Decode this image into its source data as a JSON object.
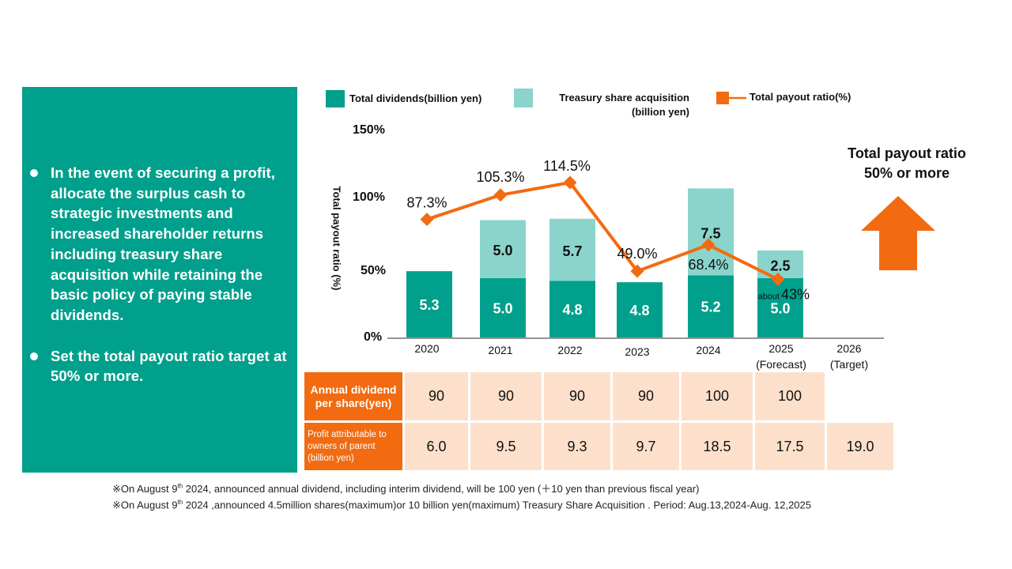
{
  "left_panel": {
    "bullets": [
      "In the event of securing a profit, allocate the surplus cash to strategic investments and increased shareholder returns including treasury share acquisition while retaining the basic policy of paying stable dividends.",
      "Set the total payout ratio target at 50% or more."
    ]
  },
  "legend": {
    "dividends": "Total dividends(billion yen)",
    "treasury_line1": "Treasury share acquisition",
    "treasury_line2": "(billion yen)",
    "payout": "Total payout ratio(%)"
  },
  "target": {
    "line1": "Total payout ratio",
    "line2": "50% or more"
  },
  "chart_data": {
    "type": "bar",
    "stacked": true,
    "categories": [
      "2020",
      "2021",
      "2022",
      "2023",
      "2024",
      "2025\n(Forecast)",
      "2026\n(Target)"
    ],
    "category_labels": [
      {
        "line1": "2020",
        "line2": ""
      },
      {
        "line1": "2021",
        "line2": ""
      },
      {
        "line1": "2022",
        "line2": ""
      },
      {
        "line1": "2023",
        "line2": ""
      },
      {
        "line1": "2024",
        "line2": ""
      },
      {
        "line1": "2025",
        "line2": "(Forecast)"
      },
      {
        "line1": "2026",
        "line2": "(Target)"
      }
    ],
    "series": [
      {
        "name": "Total dividends(billion yen)",
        "values": [
          5.3,
          5.0,
          4.8,
          4.8,
          5.2,
          5.0,
          null
        ],
        "color": "#00a08c"
      },
      {
        "name": "Treasury share acquisition (billion yen)",
        "values": [
          null,
          5.0,
          5.7,
          null,
          7.5,
          2.5,
          null
        ],
        "color": "#8ad4cc"
      }
    ],
    "bar_height_percent": [
      [
        48,
        0
      ],
      [
        43,
        42
      ],
      [
        41,
        45
      ],
      [
        40,
        0
      ],
      [
        45,
        63
      ],
      [
        43,
        20
      ],
      [
        null,
        null
      ]
    ],
    "line_series": {
      "name": "Total payout ratio(%)",
      "values": [
        87.3,
        105.3,
        114.5,
        49.0,
        68.4,
        43
      ],
      "color": "#f26b10"
    },
    "line_labels": [
      "87.3%",
      "105.3%",
      "114.5%",
      "49.0%",
      "68.4%",
      "43%"
    ],
    "line_label_prefix": {
      "index": 5,
      "text": "about"
    },
    "ylabel": "Total payout ratio (%)",
    "yticks": [
      "0%",
      "50%",
      "100%",
      "150%"
    ],
    "ylim": [
      0,
      150
    ]
  },
  "table": {
    "row1_header": "Annual dividend per share(yen)",
    "row1": [
      "90",
      "90",
      "90",
      "90",
      "100",
      "100"
    ],
    "row2_header": "Profit attributable to owners of parent (billion yen)",
    "row2": [
      "6.0",
      "9.5",
      "9.3",
      "9.7",
      "18.5",
      "17.5",
      "19.0"
    ]
  },
  "footnotes": [
    {
      "prefix": "※On August 9",
      "sup": "th",
      "text": " 2024, announced annual dividend, including interim dividend, will be 100 yen (＋10 yen than previous fiscal year)"
    },
    {
      "prefix": "※On August 9",
      "sup": "th",
      "text": " 2024 ,announced 4.5million shares(maximum)or 10 billion yen(maximum) Treasury Share Acquisition . Period: Aug.13,2024-Aug. 12,2025"
    }
  ],
  "colors": {
    "teal": "#00a08c",
    "light_teal": "#8ad4cc",
    "orange": "#f26b10",
    "peach": "#fde0cc"
  }
}
